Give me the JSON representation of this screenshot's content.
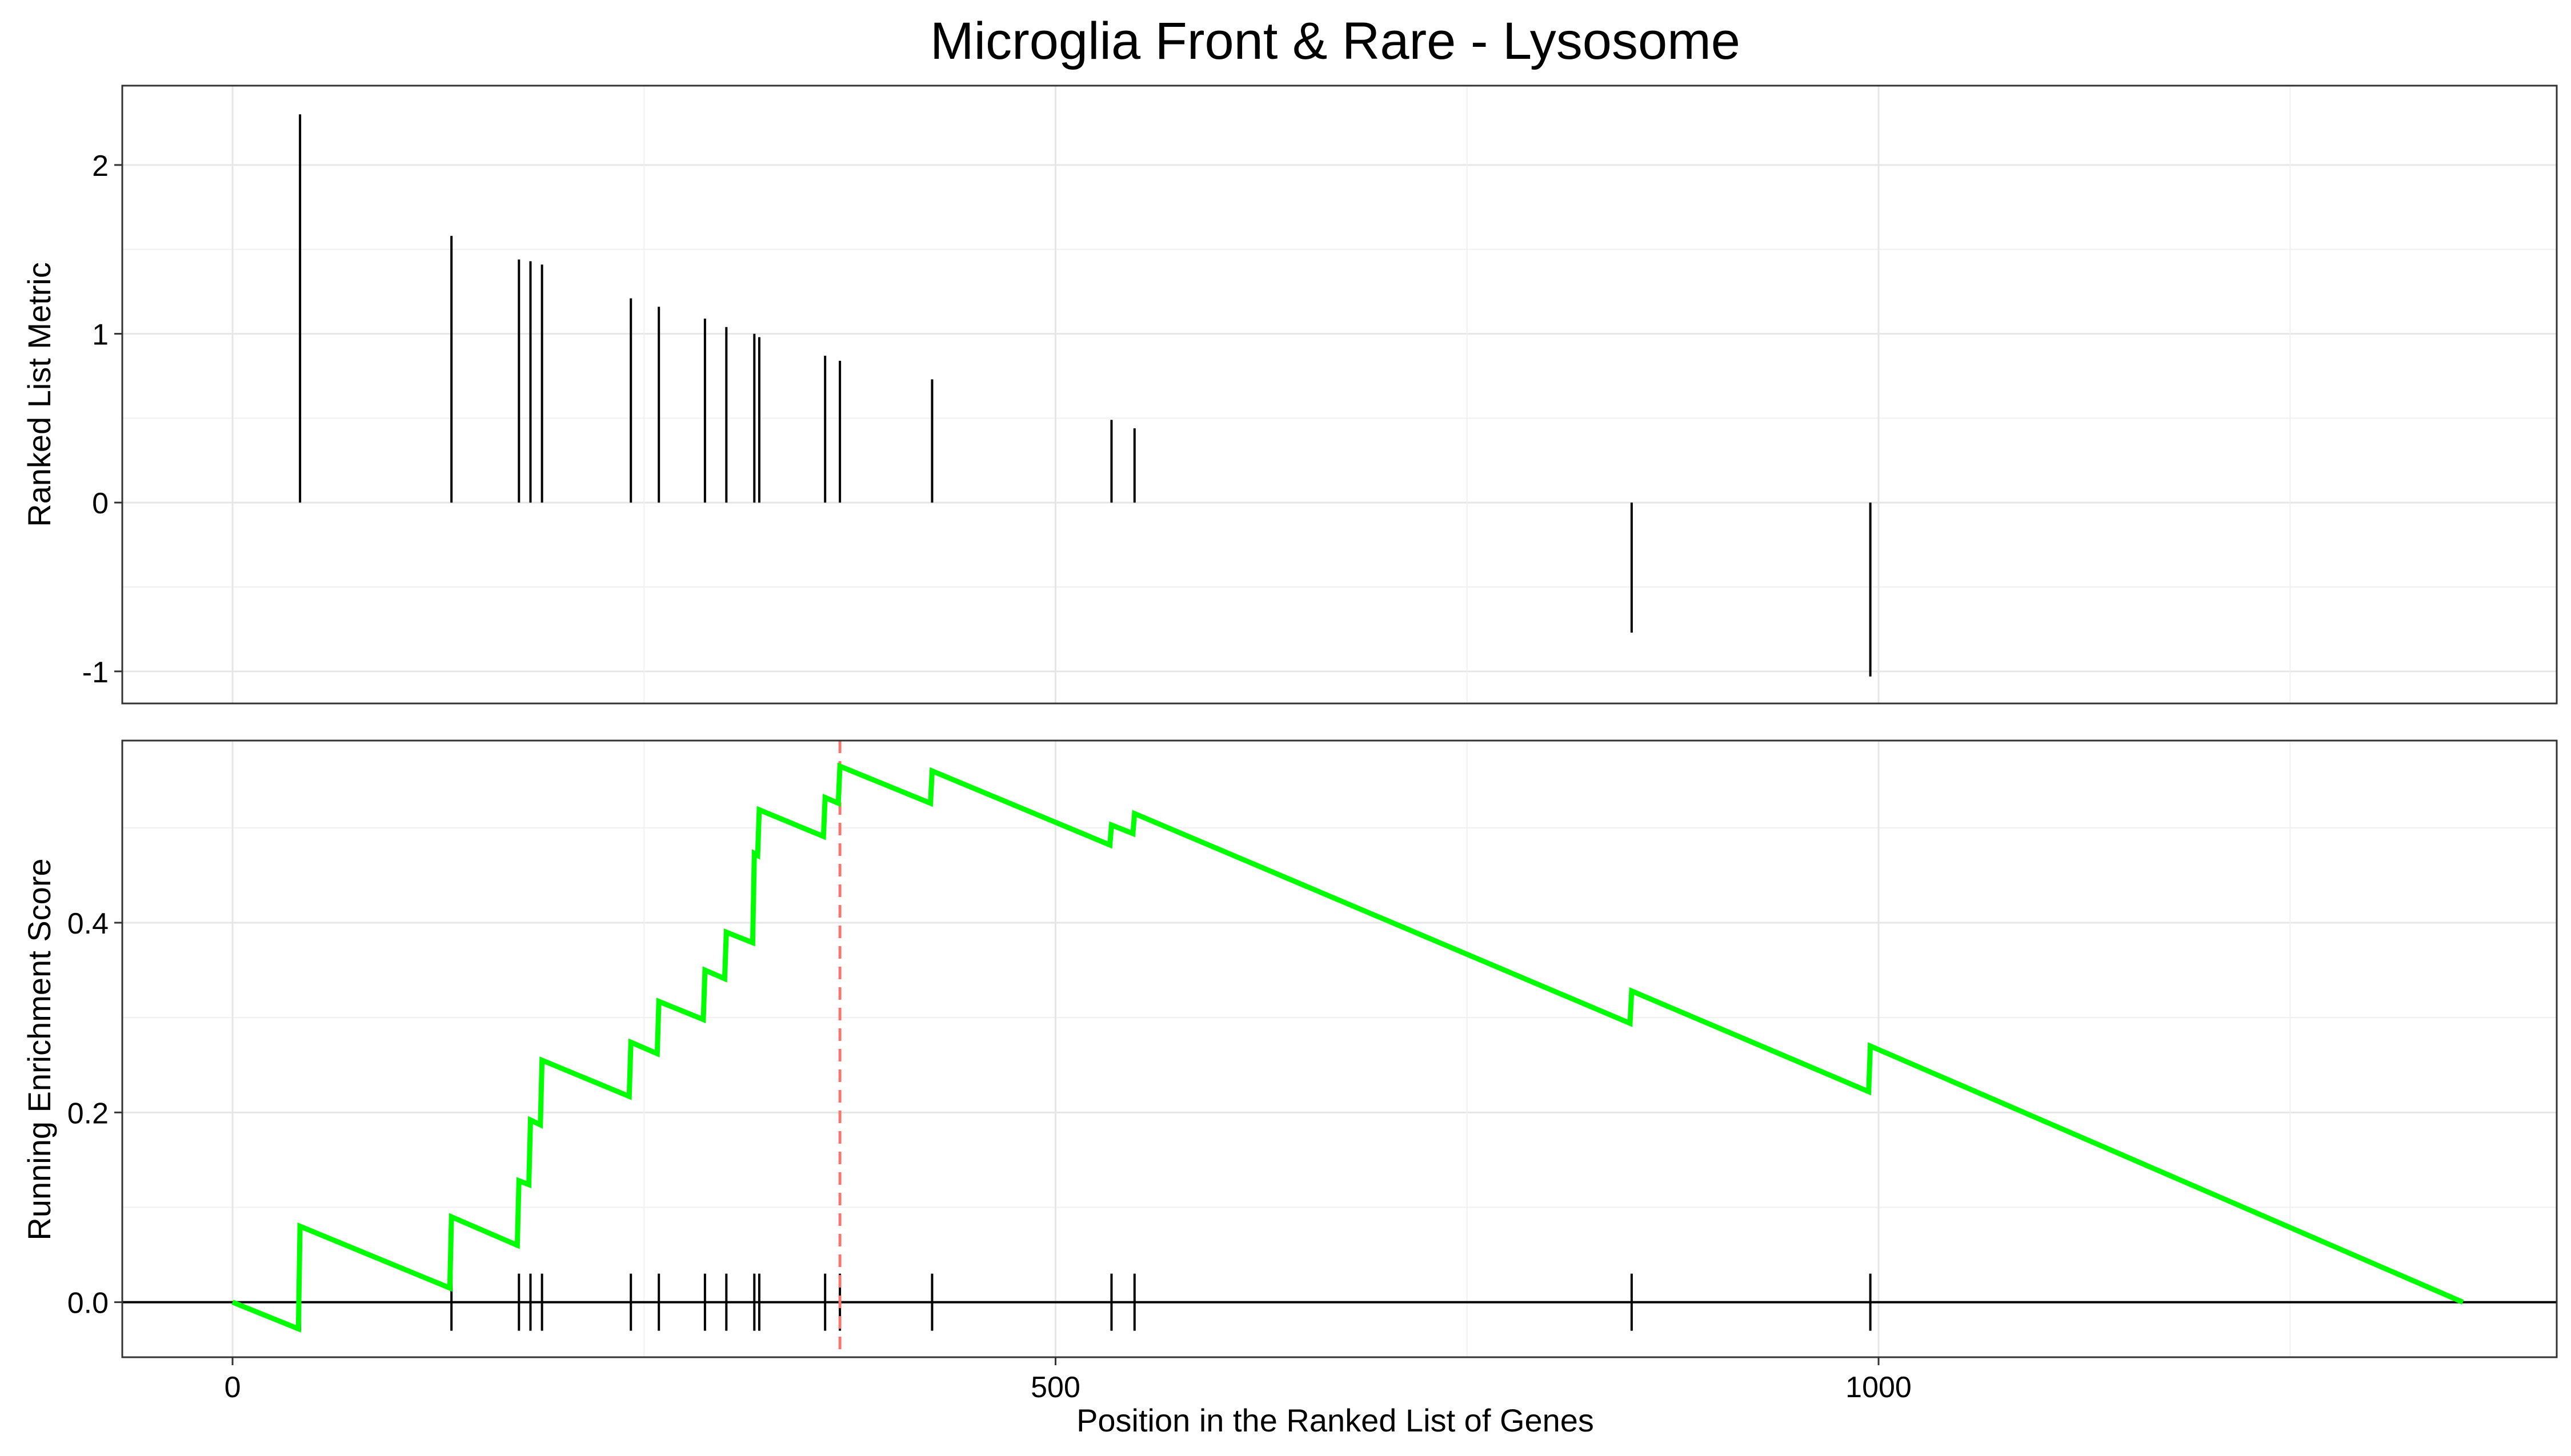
{
  "chart_data": [
    {
      "type": "bar",
      "title": "Microglia Front & Rare - Lysosome",
      "xlabel": "",
      "ylabel": "Ranked List Metric",
      "xlim": [
        -67,
        1412
      ],
      "ylim": [
        -1.19,
        2.47
      ],
      "x_ticks": [
        0,
        500,
        1000
      ],
      "y_ticks": [
        -1,
        0,
        1,
        2
      ],
      "y_tick_labels": [
        "-1",
        "0",
        "1",
        "2"
      ],
      "grid": true,
      "positions": [
        41,
        133,
        174,
        181,
        188,
        242,
        259,
        287,
        300,
        317,
        320,
        360,
        369,
        425,
        534,
        548,
        850,
        995
      ],
      "values": [
        2.3,
        1.58,
        1.44,
        1.43,
        1.41,
        1.21,
        1.16,
        1.09,
        1.04,
        1.0,
        0.98,
        0.87,
        0.84,
        0.73,
        0.49,
        0.44,
        -0.77,
        -1.03
      ]
    },
    {
      "type": "line",
      "xlabel": "Position in the Ranked List of Genes",
      "ylabel": "Running Enrichment Score",
      "xlim": [
        -67,
        1412
      ],
      "ylim": [
        -0.058,
        0.592
      ],
      "x_ticks": [
        0,
        500,
        1000
      ],
      "x_tick_labels": [
        "0",
        "500",
        "1000"
      ],
      "y_ticks": [
        0.0,
        0.2,
        0.4
      ],
      "y_tick_labels": [
        "0.0",
        "0.2",
        "0.4"
      ],
      "grid": true,
      "series": [
        {
          "color": "#00ff00",
          "x": [
            0,
            40,
            41,
            132,
            133,
            173,
            174,
            180,
            181,
            187,
            188,
            241,
            242,
            258,
            259,
            286,
            287,
            299,
            300,
            316,
            317,
            319,
            320,
            359,
            360,
            368,
            369,
            424,
            425,
            533,
            534,
            547,
            548,
            849,
            850,
            994,
            995,
            1355
          ],
          "y": [
            0.0,
            -0.028,
            0.08,
            0.015,
            0.09,
            0.06,
            0.128,
            0.124,
            0.192,
            0.187,
            0.255,
            0.217,
            0.274,
            0.262,
            0.317,
            0.298,
            0.35,
            0.341,
            0.39,
            0.379,
            0.473,
            0.471,
            0.519,
            0.491,
            0.532,
            0.526,
            0.565,
            0.526,
            0.56,
            0.482,
            0.503,
            0.494,
            0.515,
            0.294,
            0.328,
            0.222,
            0.27,
            0.0
          ]
        }
      ],
      "hit_positions": [
        41,
        133,
        174,
        181,
        188,
        242,
        259,
        287,
        300,
        317,
        320,
        360,
        369,
        425,
        534,
        548,
        850,
        995
      ],
      "max_es_position": 369,
      "max_es_line_color": "#f8766d",
      "zero_line": 0.0
    }
  ]
}
